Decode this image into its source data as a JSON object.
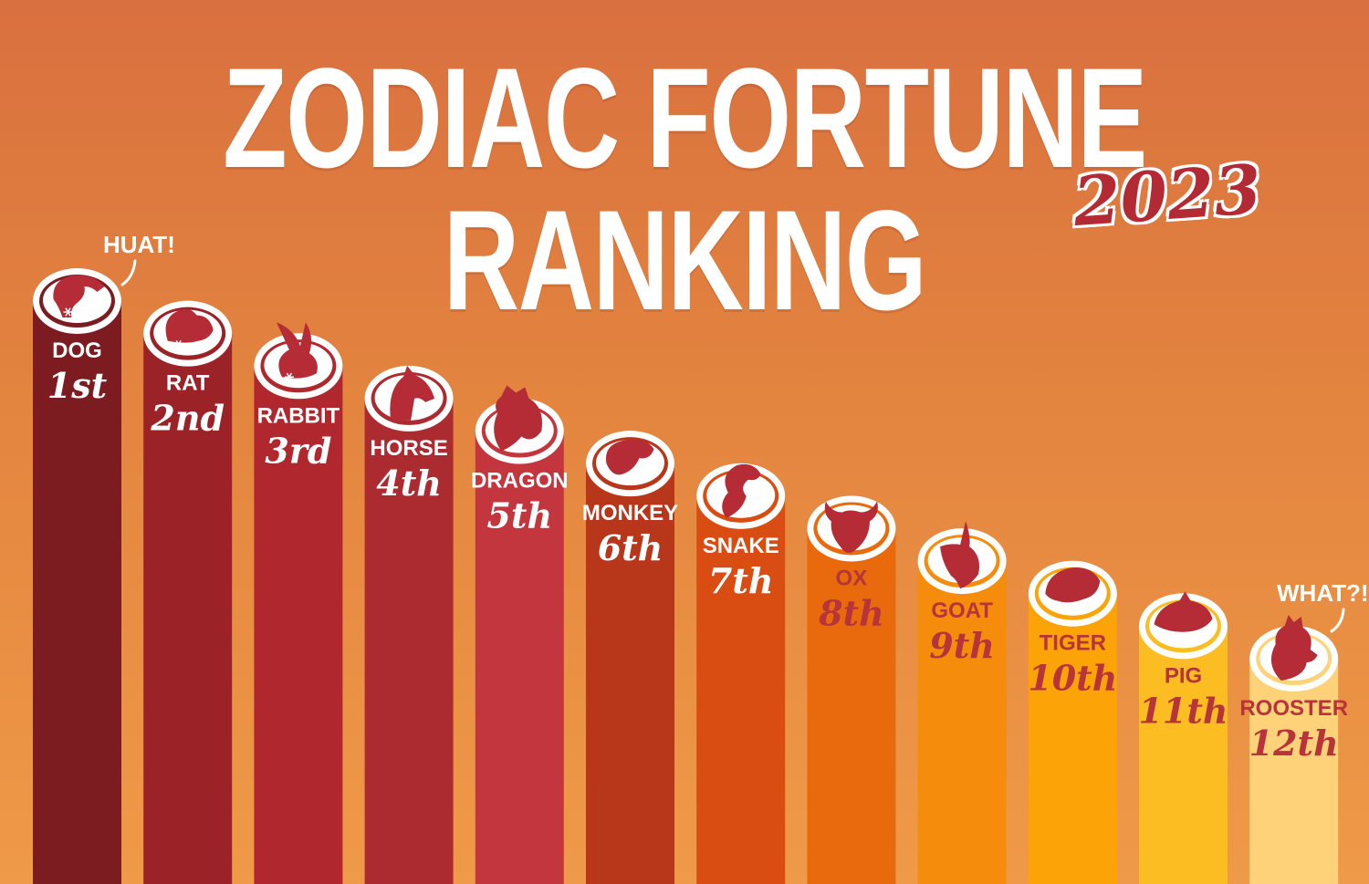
{
  "title": "ZODIAC FORTUNE RANKING",
  "year": "2023",
  "callouts": {
    "top": "HUAT!",
    "bottom": "WHAT?!"
  },
  "colors": {
    "icon_red": "#b52c36",
    "dark_text": "#b8343b",
    "white": "#ffffff"
  },
  "chart_data": {
    "type": "bar",
    "categories": [
      "DOG",
      "RAT",
      "RABBIT",
      "HORSE",
      "DRAGON",
      "MONKEY",
      "SNAKE",
      "OX",
      "GOAT",
      "TIGER",
      "PIG",
      "ROOSTER"
    ],
    "ranks": [
      "1st",
      "2nd",
      "3rd",
      "4th",
      "5th",
      "6th",
      "7th",
      "8th",
      "9th",
      "10th",
      "11th",
      "12th"
    ],
    "values": [
      12,
      11,
      10,
      9,
      8,
      7,
      6,
      5,
      4,
      3,
      2,
      1
    ],
    "bar_colors": [
      "#7d1c20",
      "#9b2328",
      "#b0282e",
      "#ab2b31",
      "#c4363e",
      "#b8361a",
      "#d94c12",
      "#e86a0c",
      "#f58c0c",
      "#fba307",
      "#fcbd22",
      "#fdd278"
    ],
    "label_colors": [
      "#ffffff",
      "#ffffff",
      "#ffffff",
      "#ffffff",
      "#ffffff",
      "#ffffff",
      "#ffffff",
      "#b8343b",
      "#b8343b",
      "#b8343b",
      "#b8343b",
      "#b8343b"
    ],
    "icons": [
      "dog-icon",
      "rat-icon",
      "rabbit-icon",
      "horse-icon",
      "dragon-icon",
      "monkey-icon",
      "snake-icon",
      "ox-icon",
      "goat-icon",
      "tiger-icon",
      "pig-icon",
      "rooster-icon"
    ]
  }
}
